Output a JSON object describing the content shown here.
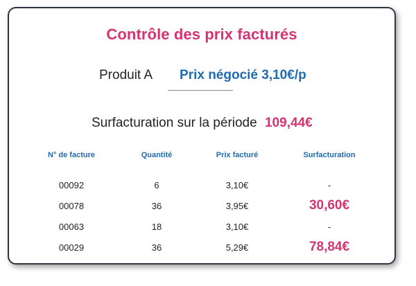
{
  "title": "Contrôle des prix facturés",
  "product": {
    "name": "Produit A",
    "negotiated_price": "Prix négocié 3,10€/p"
  },
  "overbilling": {
    "label": "Surfacturation sur la période",
    "value": "109,44€"
  },
  "table": {
    "headers": [
      "N° de facture",
      "Quantité",
      "Prix facturé",
      "Surfacturation"
    ],
    "rows": [
      {
        "invoice": "00092",
        "quantity": "6",
        "price": "3,10€",
        "overbilling": "-",
        "highlight": false
      },
      {
        "invoice": "00078",
        "quantity": "36",
        "price": "3,95€",
        "overbilling": "30,60€",
        "highlight": true
      },
      {
        "invoice": "00063",
        "quantity": "18",
        "price": "3,10€",
        "overbilling": "-",
        "highlight": false
      },
      {
        "invoice": "00029",
        "quantity": "36",
        "price": "5,29€",
        "overbilling": "78,84€",
        "highlight": true
      }
    ]
  },
  "colors": {
    "accent_pink": "#d63372",
    "accent_blue": "#1e6bb0",
    "text": "#222222",
    "border": "#2d3440"
  }
}
